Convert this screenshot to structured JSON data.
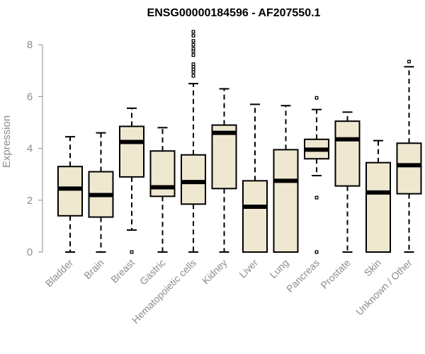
{
  "colors": {
    "box_fill": "#efe8d0",
    "stroke": "#000000",
    "axis": "#8c8c8c"
  },
  "chart_data": {
    "type": "boxplot",
    "title": "ENSG00000184596 - AF207550.1",
    "xlabel": "",
    "ylabel": "Expression",
    "ylim": [
      0,
      8.6
    ],
    "yticks": [
      0,
      2,
      4,
      6,
      8
    ],
    "ytick_labels": [
      "0",
      "2",
      "4",
      "6",
      "8"
    ],
    "categories": [
      "Bladder",
      "Brain",
      "Breast",
      "Gastric",
      "Hematopoietic cells",
      "Kidney",
      "Liver",
      "Lung",
      "Pancreas",
      "Prostate",
      "Skin",
      "Unknown / Other"
    ],
    "boxes": [
      {
        "category": "Bladder",
        "min": 0.0,
        "q1": 1.4,
        "median": 2.45,
        "q3": 3.3,
        "max": 4.45,
        "outliers": []
      },
      {
        "category": "Brain",
        "min": 0.0,
        "q1": 1.35,
        "median": 2.2,
        "q3": 3.1,
        "max": 4.6,
        "outliers": []
      },
      {
        "category": "Breast",
        "min": 0.85,
        "q1": 2.9,
        "median": 4.25,
        "q3": 4.85,
        "max": 5.55,
        "outliers": [
          0.0
        ]
      },
      {
        "category": "Gastric",
        "min": 0.0,
        "q1": 2.15,
        "median": 2.5,
        "q3": 3.9,
        "max": 4.8,
        "outliers": []
      },
      {
        "category": "Hematopoietic cells",
        "min": 0.0,
        "q1": 1.85,
        "median": 2.7,
        "q3": 3.75,
        "max": 6.5,
        "outliers": [
          6.8,
          6.95,
          7.05,
          7.15,
          7.25,
          7.6,
          7.75,
          7.85,
          8.0,
          8.15,
          8.35,
          8.5
        ]
      },
      {
        "category": "Kidney",
        "min": 0.0,
        "q1": 2.45,
        "median": 4.6,
        "q3": 4.9,
        "max": 6.3,
        "outliers": []
      },
      {
        "category": "Liver",
        "min": 0.0,
        "q1": 0.0,
        "median": 1.75,
        "q3": 2.75,
        "max": 5.7,
        "outliers": []
      },
      {
        "category": "Lung",
        "min": 0.0,
        "q1": 0.0,
        "median": 2.75,
        "q3": 3.95,
        "max": 5.65,
        "outliers": []
      },
      {
        "category": "Pancreas",
        "min": 2.95,
        "q1": 3.6,
        "median": 3.95,
        "q3": 4.35,
        "max": 5.5,
        "outliers": [
          0.0,
          2.1,
          5.95
        ]
      },
      {
        "category": "Prostate",
        "min": 0.0,
        "q1": 2.55,
        "median": 4.35,
        "q3": 5.05,
        "max": 5.4,
        "outliers": []
      },
      {
        "category": "Skin",
        "min": 0.0,
        "q1": 0.0,
        "median": 2.3,
        "q3": 3.45,
        "max": 4.3,
        "outliers": []
      },
      {
        "category": "Unknown / Other",
        "min": 0.0,
        "q1": 2.25,
        "median": 3.35,
        "q3": 4.2,
        "max": 7.15,
        "outliers": [
          7.35
        ]
      }
    ]
  }
}
